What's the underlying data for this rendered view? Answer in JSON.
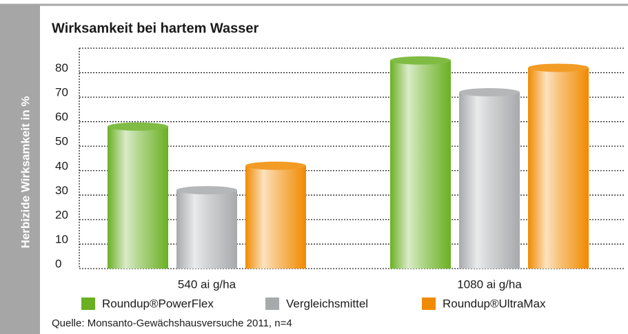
{
  "chart_data": {
    "type": "bar",
    "title": "Wirksamkeit bei hartem Wasser",
    "y_label": "Herbizide Wirksamkeit in %",
    "categories": [
      "540 ai g/ha",
      "1080 ai g/ha"
    ],
    "series": [
      {
        "name": "Roundup®PowerFlex",
        "color": "#6ab023",
        "values": [
          58,
          85
        ]
      },
      {
        "name": "Vergleichsmittel",
        "color": "#a7a9ac",
        "values": [
          32,
          72
        ]
      },
      {
        "name": "Roundup®UltraMax",
        "color": "#f08a00",
        "values": [
          42,
          82
        ]
      }
    ],
    "ylim": [
      0,
      90
    ],
    "yticks": [
      0,
      10,
      20,
      30,
      40,
      50,
      60,
      70,
      80
    ],
    "grid": true,
    "source": "Quelle: Monsanto-Gewächshausversuche 2011, n=4"
  }
}
